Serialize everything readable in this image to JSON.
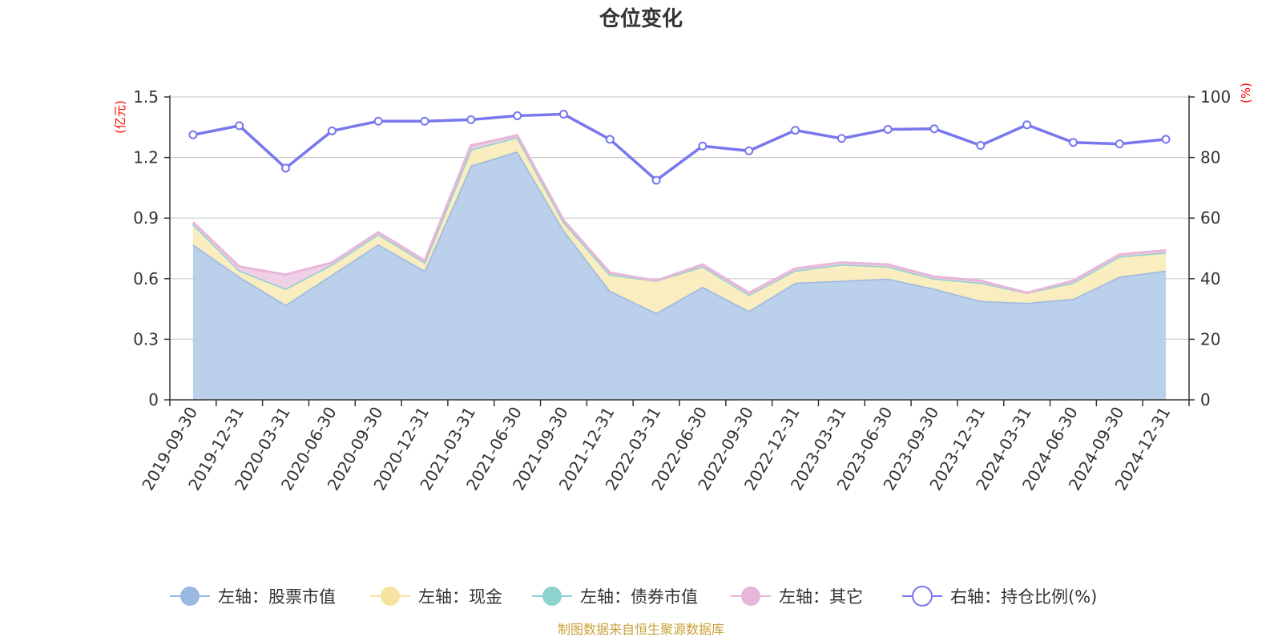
{
  "chart_data": {
    "type": "area",
    "title": "仓位变化",
    "left_axis_unit": "(亿元)",
    "right_axis_unit": "(%)",
    "left_ylim": [
      0,
      1.5
    ],
    "left_ticks": [
      "0",
      "0.3",
      "0.6",
      "0.9",
      "1.2",
      "1.5"
    ],
    "right_ylim": [
      0,
      100
    ],
    "right_ticks": [
      "0",
      "20",
      "40",
      "60",
      "80",
      "100"
    ],
    "categories": [
      "2019-09-30",
      "2019-12-31",
      "2020-03-31",
      "2020-06-30",
      "2020-09-30",
      "2020-12-31",
      "2021-03-31",
      "2021-06-30",
      "2021-09-30",
      "2021-12-31",
      "2022-03-31",
      "2022-06-30",
      "2022-09-30",
      "2022-12-31",
      "2023-03-31",
      "2023-06-30",
      "2023-09-30",
      "2023-12-31",
      "2024-03-31",
      "2024-06-30",
      "2024-09-30",
      "2024-12-31"
    ],
    "series": [
      {
        "name": "左轴：股票市值",
        "axis": "left",
        "kind": "stacked-area",
        "color": "#9bb8e0",
        "fill": "#b7cdea",
        "values": [
          0.77,
          0.61,
          0.47,
          0.62,
          0.77,
          0.64,
          1.16,
          1.23,
          0.84,
          0.54,
          0.43,
          0.56,
          0.44,
          0.58,
          0.59,
          0.6,
          0.55,
          0.49,
          0.48,
          0.5,
          0.61,
          0.64
        ]
      },
      {
        "name": "左轴：现金",
        "axis": "left",
        "kind": "stacked-area",
        "color": "#f7e3a0",
        "fill": "#faedbd",
        "values": [
          0.1,
          0.03,
          0.08,
          0.05,
          0.05,
          0.04,
          0.08,
          0.07,
          0.04,
          0.08,
          0.16,
          0.1,
          0.08,
          0.06,
          0.08,
          0.06,
          0.05,
          0.09,
          0.05,
          0.08,
          0.1,
          0.09
        ]
      },
      {
        "name": "左轴：债券市值",
        "axis": "left",
        "kind": "stacked-area",
        "color": "#8fd3d1",
        "fill": "#bfe6e4",
        "values": [
          0,
          0,
          0,
          0,
          0,
          0,
          0,
          0,
          0,
          0,
          0,
          0,
          0,
          0,
          0,
          0,
          0,
          0,
          0,
          0,
          0,
          0
        ]
      },
      {
        "name": "左轴：其它",
        "axis": "left",
        "kind": "stacked-area",
        "color": "#e8b6d8",
        "fill": "#efcde5",
        "values": [
          0.01,
          0.02,
          0.07,
          0.01,
          0.01,
          0.01,
          0.02,
          0.01,
          0.01,
          0.01,
          0.0,
          0.01,
          0.01,
          0.01,
          0.01,
          0.01,
          0.01,
          0.01,
          0.0,
          0.01,
          0.01,
          0.01
        ]
      },
      {
        "name": "右轴：持仓比例(%)",
        "axis": "right",
        "kind": "line",
        "color": "#7777ee",
        "values": [
          87.5,
          90.5,
          76.5,
          88.8,
          92.0,
          92.0,
          92.5,
          93.8,
          94.3,
          86.0,
          72.5,
          83.8,
          82.2,
          89.0,
          86.3,
          89.3,
          89.5,
          84.0,
          90.8,
          85.0,
          84.5,
          86.0
        ]
      }
    ],
    "legend_position": "bottom",
    "source_note": "制图数据来自恒生聚源数据库"
  }
}
